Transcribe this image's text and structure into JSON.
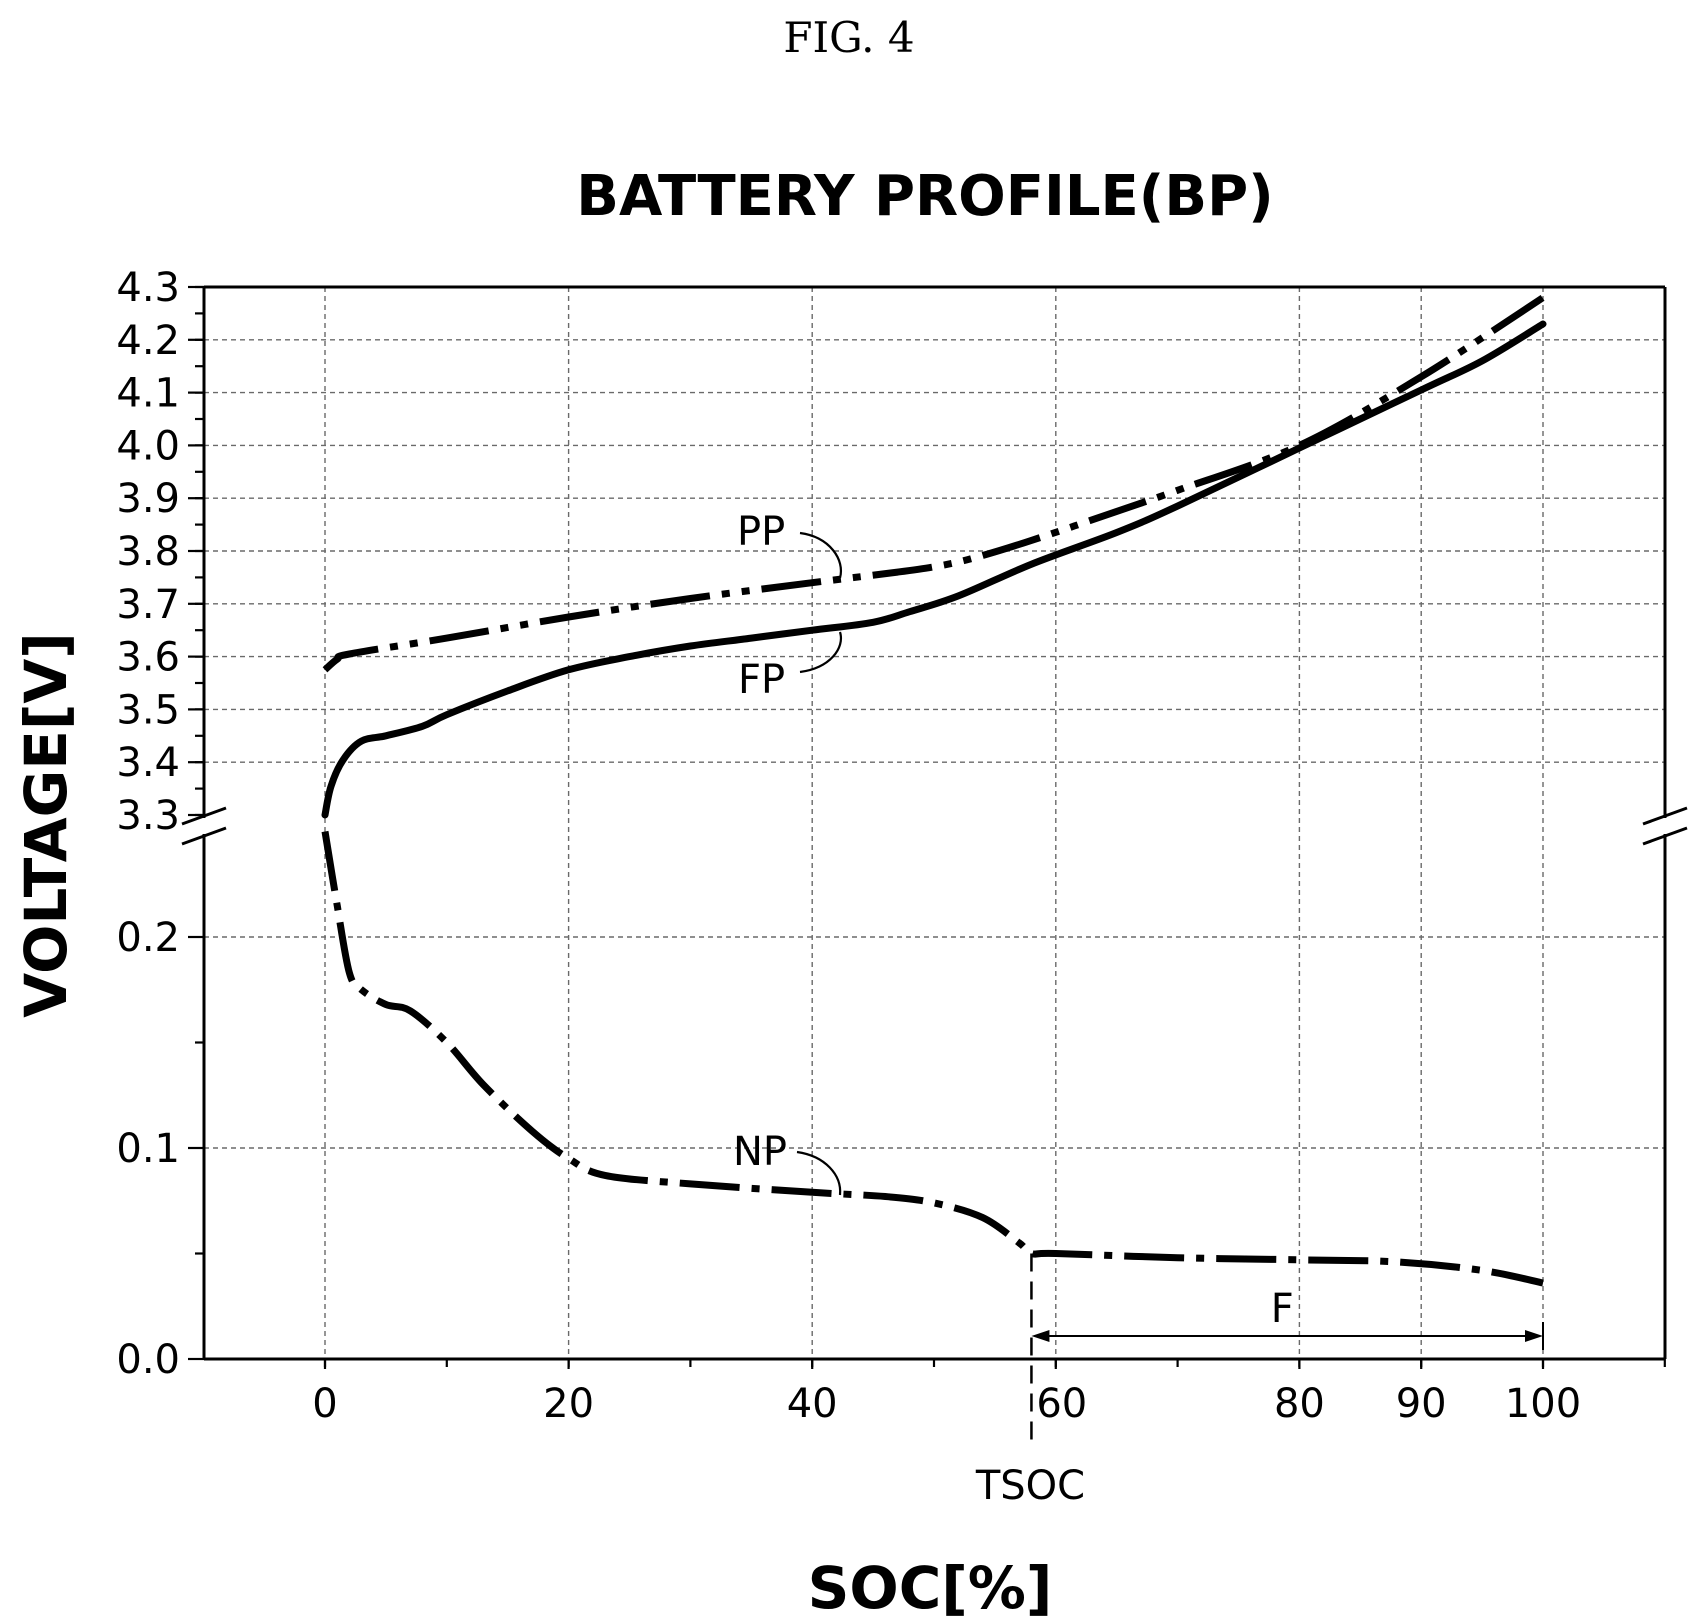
{
  "figure_label": "FIG. 4",
  "chart_data": {
    "type": "line",
    "title": "BATTERY PROFILE(BP)",
    "xlabel": "SOC[%]",
    "ylabel": "VOLTAGE[V]",
    "xlim": [
      -10,
      110
    ],
    "x_ticks": [
      0,
      20,
      40,
      60,
      80,
      90,
      100
    ],
    "broken_y_axis": true,
    "y_upper_range": [
      3.3,
      4.3
    ],
    "y_upper_ticks": [
      "3.3",
      "3.4",
      "3.5",
      "3.6",
      "3.7",
      "3.8",
      "3.9",
      "4.0",
      "4.1",
      "4.2",
      "4.3"
    ],
    "y_lower_range": [
      0.0,
      0.25
    ],
    "y_lower_ticks": [
      "0.0",
      "0.1",
      "0.2"
    ],
    "grid": true,
    "series": [
      {
        "name": "PP",
        "style": "dash-dot-dot",
        "axis": "upper",
        "points": [
          [
            0,
            3.575
          ],
          [
            1,
            3.595
          ],
          [
            2,
            3.605
          ],
          [
            10,
            3.635
          ],
          [
            20,
            3.675
          ],
          [
            30,
            3.71
          ],
          [
            40,
            3.74
          ],
          [
            47,
            3.76
          ],
          [
            50,
            3.77
          ],
          [
            53,
            3.785
          ],
          [
            58,
            3.82
          ],
          [
            65,
            3.875
          ],
          [
            70,
            3.915
          ],
          [
            80,
            4.0
          ],
          [
            90,
            4.13
          ],
          [
            100,
            4.28
          ]
        ]
      },
      {
        "name": "FP",
        "style": "solid",
        "axis": "upper",
        "points": [
          [
            0,
            3.3
          ],
          [
            0.5,
            3.355
          ],
          [
            1.5,
            3.405
          ],
          [
            3,
            3.44
          ],
          [
            5,
            3.45
          ],
          [
            8,
            3.468
          ],
          [
            10,
            3.49
          ],
          [
            15,
            3.535
          ],
          [
            20,
            3.575
          ],
          [
            25,
            3.6
          ],
          [
            30,
            3.62
          ],
          [
            35,
            3.635
          ],
          [
            40,
            3.65
          ],
          [
            45,
            3.665
          ],
          [
            48,
            3.685
          ],
          [
            52,
            3.715
          ],
          [
            58,
            3.775
          ],
          [
            65,
            3.835
          ],
          [
            70,
            3.885
          ],
          [
            80,
            3.995
          ],
          [
            90,
            4.105
          ],
          [
            95,
            4.16
          ],
          [
            100,
            4.23
          ]
        ]
      },
      {
        "name": "NP",
        "style": "dash-dot",
        "axis": "lower",
        "points": [
          [
            0,
            0.25
          ],
          [
            1,
            0.215
          ],
          [
            2,
            0.183
          ],
          [
            3,
            0.175
          ],
          [
            5,
            0.168
          ],
          [
            7,
            0.165
          ],
          [
            10,
            0.15
          ],
          [
            13,
            0.13
          ],
          [
            17,
            0.108
          ],
          [
            20,
            0.095
          ],
          [
            23,
            0.087
          ],
          [
            30,
            0.083
          ],
          [
            40,
            0.079
          ],
          [
            46,
            0.077
          ],
          [
            50,
            0.074
          ],
          [
            54,
            0.067
          ],
          [
            57,
            0.055
          ],
          [
            58,
            0.05
          ],
          [
            60,
            0.05
          ],
          [
            70,
            0.048
          ],
          [
            80,
            0.047
          ],
          [
            88,
            0.046
          ],
          [
            95,
            0.042
          ],
          [
            100,
            0.036
          ]
        ]
      }
    ],
    "annotations": [
      {
        "text": "TSOC",
        "x": 58
      },
      {
        "text": "F",
        "x_range": [
          58,
          100
        ]
      }
    ]
  }
}
